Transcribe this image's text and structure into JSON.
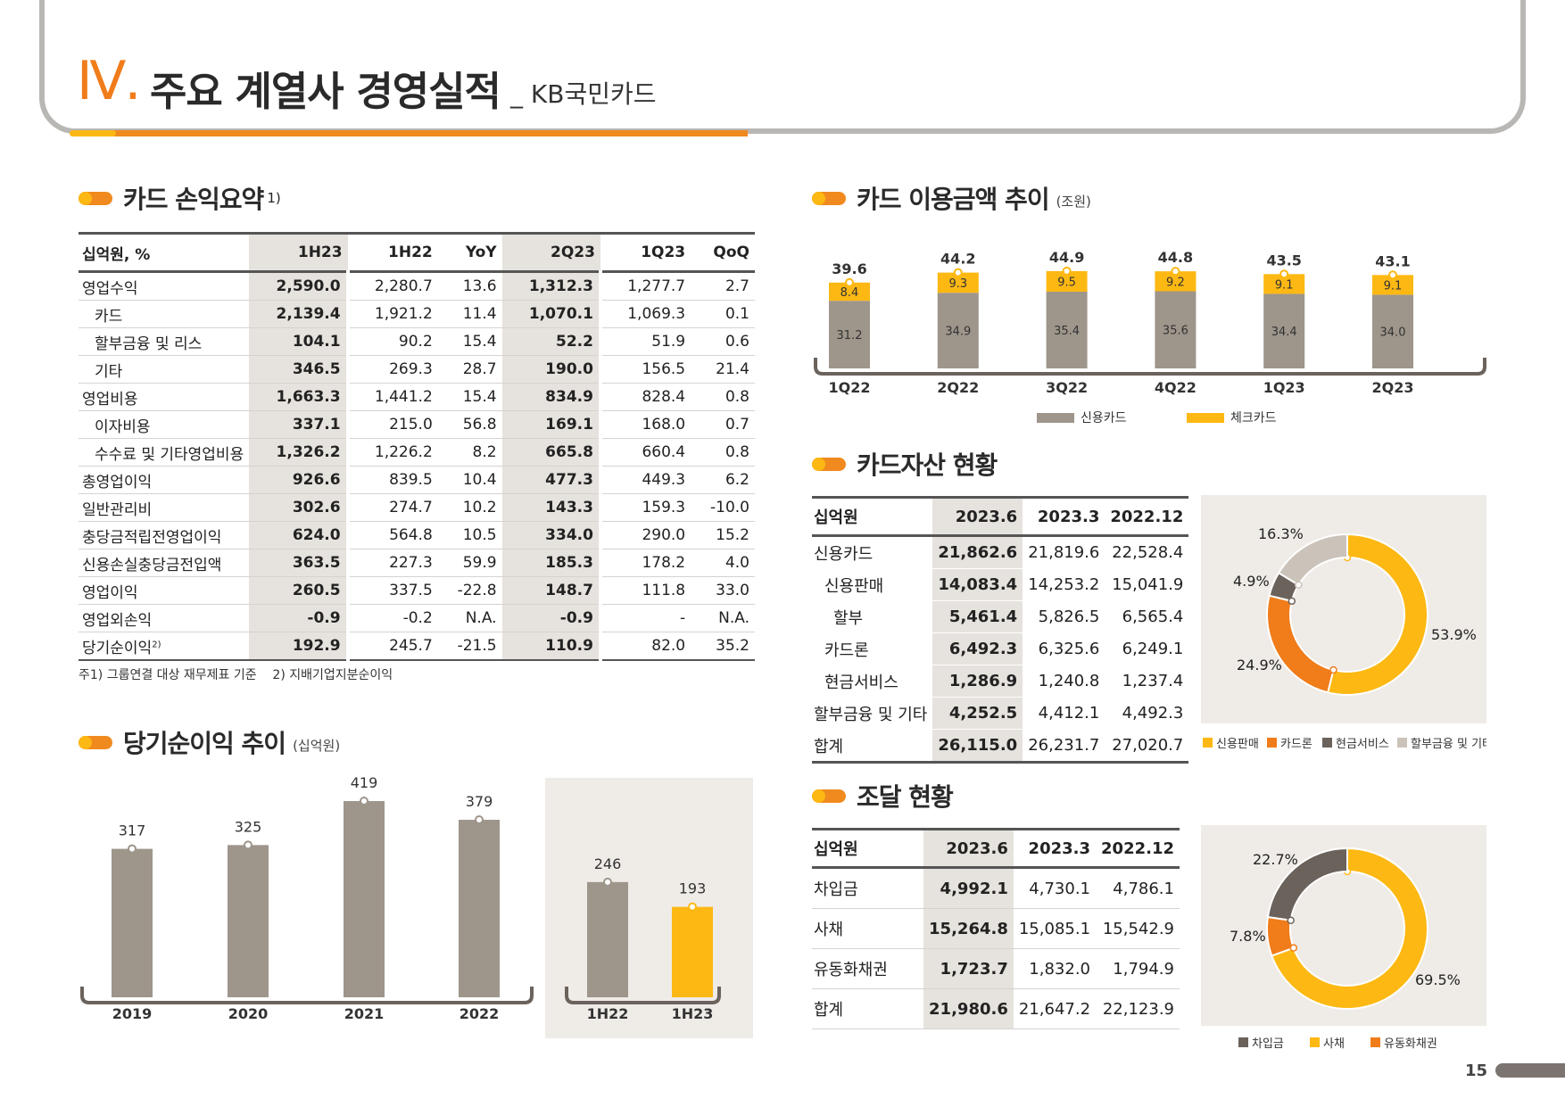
{
  "header": {
    "roman": "Ⅳ",
    "dot": ".",
    "title": "주요 계열사 경영실적",
    "subtitle": "_ KB국민카드"
  },
  "sections": {
    "income": {
      "title": "카드 손익요약",
      "sup": "1)"
    },
    "usage": {
      "title": "카드 이용금액 추이",
      "unit": "(조원)"
    },
    "assets": {
      "title": "카드자산 현황"
    },
    "net_income": {
      "title": "당기순이익 추이",
      "unit": "(십억원)"
    },
    "funding": {
      "title": "조달 현황"
    }
  },
  "income_table": {
    "headers": [
      "십억원, %",
      "1H23",
      "1H22",
      "YoY",
      "2Q23",
      "1Q23",
      "QoQ"
    ],
    "rows": [
      {
        "label": "영업수익",
        "v": [
          "2,590.0",
          "2,280.7",
          "13.6",
          "1,312.3",
          "1,277.7",
          "2.7"
        ]
      },
      {
        "label": "카드",
        "v": [
          "2,139.4",
          "1,921.2",
          "11.4",
          "1,070.1",
          "1,069.3",
          "0.1"
        ]
      },
      {
        "label": "할부금융 및 리스",
        "v": [
          "104.1",
          "90.2",
          "15.4",
          "52.2",
          "51.9",
          "0.6"
        ]
      },
      {
        "label": "기타",
        "v": [
          "346.5",
          "269.3",
          "28.7",
          "190.0",
          "156.5",
          "21.4"
        ]
      },
      {
        "label": "영업비용",
        "v": [
          "1,663.3",
          "1,441.2",
          "15.4",
          "834.9",
          "828.4",
          "0.8"
        ]
      },
      {
        "label": "이자비용",
        "v": [
          "337.1",
          "215.0",
          "56.8",
          "169.1",
          "168.0",
          "0.7"
        ]
      },
      {
        "label": "수수료 및 기타영업비용",
        "v": [
          "1,326.2",
          "1,226.2",
          "8.2",
          "665.8",
          "660.4",
          "0.8"
        ]
      },
      {
        "label": "총영업이익",
        "v": [
          "926.6",
          "839.5",
          "10.4",
          "477.3",
          "449.3",
          "6.2"
        ]
      },
      {
        "label": "일반관리비",
        "v": [
          "302.6",
          "274.7",
          "10.2",
          "143.3",
          "159.3",
          "-10.0"
        ]
      },
      {
        "label": "충당금적립전영업이익",
        "v": [
          "624.0",
          "564.8",
          "10.5",
          "334.0",
          "290.0",
          "15.2"
        ]
      },
      {
        "label": "신용손실충당금전입액",
        "v": [
          "363.5",
          "227.3",
          "59.9",
          "185.3",
          "178.2",
          "4.0"
        ]
      },
      {
        "label": "영업이익",
        "v": [
          "260.5",
          "337.5",
          "-22.8",
          "148.7",
          "111.8",
          "33.0"
        ]
      },
      {
        "label": "영업외손익",
        "v": [
          "-0.9",
          "-0.2",
          "N.A.",
          "-0.9",
          "-",
          "N.A."
        ]
      },
      {
        "label": "당기순이익",
        "sup": "2)",
        "v": [
          "192.9",
          "245.7",
          "-21.5",
          "110.9",
          "82.0",
          "35.2"
        ]
      }
    ],
    "note": "주1) 그룹연결 대상 재무제표 기준    2) 지배기업지분순이익"
  },
  "usage_chart": {
    "categories": [
      "1Q22",
      "2Q22",
      "3Q22",
      "4Q22",
      "1Q23",
      "2Q23"
    ],
    "credit": [
      "31.2",
      "34.9",
      "35.4",
      "35.6",
      "34.4",
      "34.0"
    ],
    "check": [
      "8.4",
      "9.3",
      "9.5",
      "9.2",
      "9.1",
      "9.1"
    ],
    "totals": [
      "39.6",
      "44.2",
      "44.9",
      "44.8",
      "43.5",
      "43.1"
    ],
    "legend": [
      "신용카드",
      "체크카드"
    ]
  },
  "chart_data": [
    {
      "type": "bar",
      "title": "카드 이용금액 추이",
      "categories": [
        "1Q22",
        "2Q22",
        "3Q22",
        "4Q22",
        "1Q23",
        "2Q23"
      ],
      "series": [
        {
          "name": "신용카드",
          "values": [
            31.2,
            34.9,
            35.4,
            35.6,
            34.4,
            34.0
          ]
        },
        {
          "name": "체크카드",
          "values": [
            8.4,
            9.3,
            9.5,
            9.2,
            9.1,
            9.1
          ]
        }
      ],
      "totals": [
        39.6,
        44.2,
        44.9,
        44.8,
        43.5,
        43.1
      ],
      "stacked": true,
      "unit": "(조원)"
    },
    {
      "type": "bar",
      "title": "당기순이익 추이",
      "categories": [
        "2019",
        "2020",
        "2021",
        "2022",
        "1H22",
        "1H23"
      ],
      "values": [
        317,
        325,
        419,
        379,
        246,
        193
      ],
      "unit": "(십억원)"
    },
    {
      "type": "pie",
      "categories": [
        "신용판매",
        "카드론",
        "현금서비스",
        "할부금융 및 기타"
      ],
      "values": [
        53.9,
        24.9,
        4.9,
        16.3
      ]
    },
    {
      "type": "pie",
      "categories": [
        "사채",
        "유동화채권",
        "차입금"
      ],
      "values": [
        69.5,
        7.8,
        22.7
      ]
    }
  ],
  "asset_table": {
    "headers": [
      "십억원",
      "2023.6",
      "2023.3",
      "2022.12"
    ],
    "rows": [
      {
        "label": "신용카드",
        "v": [
          "21,862.6",
          "21,819.6",
          "22,528.4"
        ]
      },
      {
        "label": "신용판매",
        "v": [
          "14,083.4",
          "14,253.2",
          "15,041.9"
        ]
      },
      {
        "label": "할부",
        "v": [
          "5,461.4",
          "5,826.5",
          "6,565.4"
        ]
      },
      {
        "label": "카드론",
        "v": [
          "6,492.3",
          "6,325.6",
          "6,249.1"
        ]
      },
      {
        "label": "현금서비스",
        "v": [
          "1,286.9",
          "1,240.8",
          "1,237.4"
        ]
      },
      {
        "label": "할부금융 및 기타",
        "v": [
          "4,252.5",
          "4,412.1",
          "4,492.3"
        ]
      },
      {
        "label": "합계",
        "v": [
          "26,115.0",
          "26,231.7",
          "27,020.7"
        ]
      }
    ]
  },
  "asset_donut": {
    "labels": [
      "53.9%",
      "24.9%",
      "4.9%",
      "16.3%"
    ],
    "legend": [
      "신용판매",
      "카드론",
      "현금서비스",
      "할부금융 및 기타"
    ]
  },
  "funding_table": {
    "headers": [
      "십억원",
      "2023.6",
      "2023.3",
      "2022.12"
    ],
    "rows": [
      {
        "label": "차입금",
        "v": [
          "4,992.1",
          "4,730.1",
          "4,786.1"
        ]
      },
      {
        "label": "사채",
        "v": [
          "15,264.8",
          "15,085.1",
          "15,542.9"
        ]
      },
      {
        "label": "유동화채권",
        "v": [
          "1,723.7",
          "1,832.0",
          "1,794.9"
        ]
      },
      {
        "label": "합계",
        "v": [
          "21,980.6",
          "21,647.2",
          "22,123.9"
        ]
      }
    ]
  },
  "funding_donut": {
    "labels": [
      "69.5%",
      "7.8%",
      "22.7%"
    ],
    "legend": [
      "차입금",
      "사채",
      "유동화채권"
    ]
  },
  "net_income_chart": {
    "annual_categories": [
      "2019",
      "2020",
      "2021",
      "2022"
    ],
    "annual_labels": [
      "317",
      "325",
      "419",
      "379"
    ],
    "half_categories": [
      "1H22",
      "1H23"
    ],
    "half_labels": [
      "246",
      "193"
    ]
  },
  "colors": {
    "orange": "#f08a1e",
    "yellow": "#fdb813",
    "taupe": "#9e958b",
    "dark": "#6b625c",
    "panel": "#efebe7"
  },
  "page_number": "15"
}
